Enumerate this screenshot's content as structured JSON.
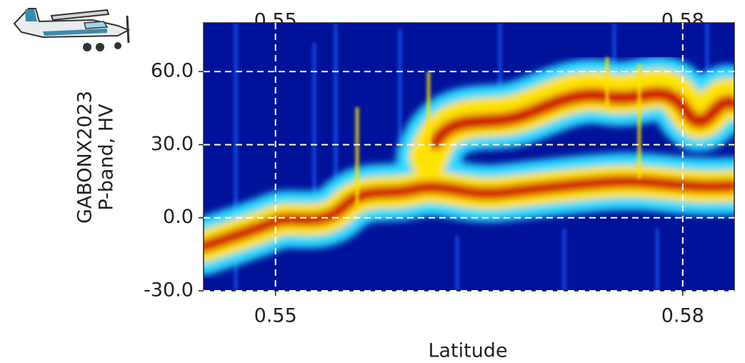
{
  "chart_data": {
    "type": "heatmap",
    "ylabel": [
      "GABONX2023",
      "P-band, HV"
    ],
    "xlabel": "Latitude",
    "xlim": [
      0.5447,
      0.5838
    ],
    "ylim": [
      -30,
      80
    ],
    "xticks": [
      0.55,
      0.58
    ],
    "yticks": [
      {
        "value": 60,
        "label": "60.0"
      },
      {
        "value": 30,
        "label": "30.0"
      },
      {
        "value": 0,
        "label": "0.0"
      },
      {
        "value": -30,
        "label": "-30.0"
      }
    ],
    "grid": true
  }
}
